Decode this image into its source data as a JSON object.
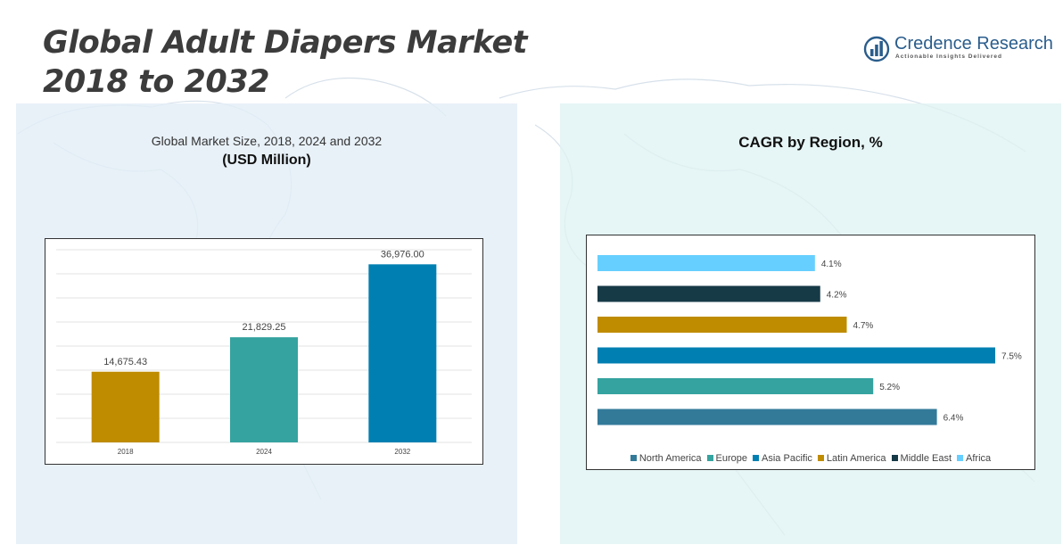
{
  "header": {
    "title_line1": "Global Adult Diapers Market",
    "title_line2": "2018 to 2032"
  },
  "logo": {
    "name": "Credence Research",
    "tagline": "Actionable Insights Delivered",
    "icon": "bar-chart-logo-icon"
  },
  "colors": {
    "north_america": "#337a99",
    "europe": "#35a39f",
    "asia_pacific": "#0080b2",
    "latin_america": "#bf8c00",
    "middle_east": "#173a47",
    "africa": "#66cfff"
  },
  "left_panel": {
    "subtitle": "Global Market Size, 2018, 2024 and 2032",
    "unit": "(USD Million)"
  },
  "right_panel": {
    "title": "CAGR by Region, %"
  },
  "chart_data": [
    {
      "type": "bar",
      "title": "Global Market Size, 2018, 2024 and 2032",
      "subtitle": "(USD Million)",
      "categories": [
        "2018",
        "2024",
        "2032"
      ],
      "values": [
        14675.43,
        21829.25,
        36976.0
      ],
      "value_labels": [
        "14,675.43",
        "21,829.25",
        "36,976.00"
      ],
      "colors": [
        "#bf8c00",
        "#35a39f",
        "#0080b2"
      ],
      "ylim": [
        0,
        40000
      ],
      "grid": true
    },
    {
      "type": "bar",
      "orientation": "horizontal",
      "title": "CAGR by Region, %",
      "categories": [
        "North America",
        "Europe",
        "Asia Pacific",
        "Latin America",
        "Middle East",
        "Africa"
      ],
      "values": [
        6.4,
        5.2,
        7.5,
        4.7,
        4.2,
        4.1
      ],
      "value_labels": [
        "6.4%",
        "5.2%",
        "7.5%",
        "4.7%",
        "4.2%",
        "4.1%"
      ],
      "colors": [
        "#337a99",
        "#35a39f",
        "#0080b2",
        "#bf8c00",
        "#173a47",
        "#66cfff"
      ],
      "xlim": [
        0,
        7.5
      ],
      "legend": "bottom"
    }
  ]
}
